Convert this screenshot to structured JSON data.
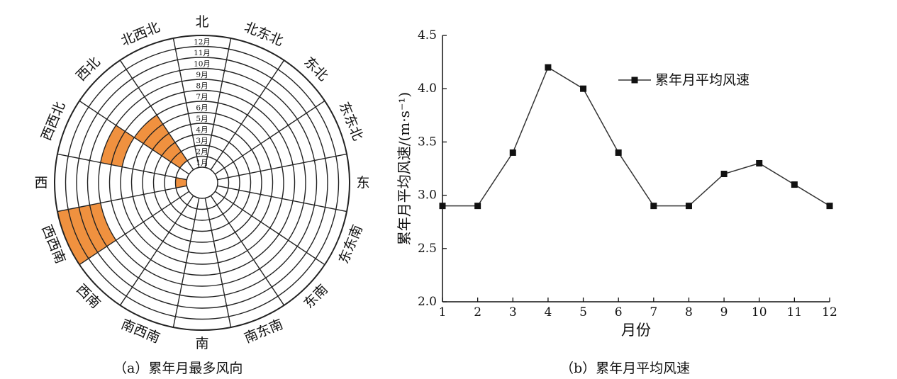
{
  "captions": {
    "left": "（a）累年月最多风向",
    "right": "（b）累年月平均风速"
  },
  "colors": {
    "fill": "#F0913F",
    "line": "#222222",
    "series": "#333333",
    "marker": "#111111"
  },
  "chart_data": [
    {
      "type": "radial-calendar",
      "directions": [
        "北",
        "北东北",
        "东北",
        "东东北",
        "东",
        "东东南",
        "东南",
        "南东南",
        "南",
        "南西南",
        "西南",
        "西西南",
        "西",
        "西西北",
        "西北",
        "北西北"
      ],
      "months": [
        "1月",
        "2月",
        "3月",
        "4月",
        "5月",
        "6月",
        "7月",
        "8月",
        "9月",
        "10月",
        "11月",
        "12月"
      ],
      "highlighted": [
        {
          "month": 1,
          "direction": "西"
        },
        {
          "month": 2,
          "direction": "西北"
        },
        {
          "month": 3,
          "direction": "西北"
        },
        {
          "month": 4,
          "direction": "西北"
        },
        {
          "month": 5,
          "direction": "西北"
        },
        {
          "month": 6,
          "direction": "西北"
        },
        {
          "month": 7,
          "direction": "西西北"
        },
        {
          "month": 8,
          "direction": "西西北"
        },
        {
          "month": 9,
          "direction": "西西南"
        },
        {
          "month": 10,
          "direction": "西西南"
        },
        {
          "month": 11,
          "direction": "西西南"
        },
        {
          "month": 12,
          "direction": "西西南"
        }
      ]
    },
    {
      "type": "line",
      "x": [
        1,
        2,
        3,
        4,
        5,
        6,
        7,
        8,
        9,
        10,
        11,
        12
      ],
      "series": [
        {
          "name": "累年月平均风速",
          "values": [
            2.9,
            2.9,
            3.4,
            4.2,
            4.0,
            3.4,
            2.9,
            2.9,
            3.2,
            3.3,
            3.1,
            2.9
          ]
        }
      ],
      "xlabel": "月份",
      "ylabel": "累年月平均风速/(m·s⁻¹)",
      "ylim": [
        2.0,
        4.5
      ],
      "yticks": [
        "2.0",
        "2.5",
        "3.0",
        "3.5",
        "4.0",
        "4.5"
      ],
      "xticks": [
        "1",
        "2",
        "3",
        "4",
        "5",
        "6",
        "7",
        "8",
        "9",
        "10",
        "11",
        "12"
      ],
      "legend": "top-center",
      "grid": false
    }
  ]
}
